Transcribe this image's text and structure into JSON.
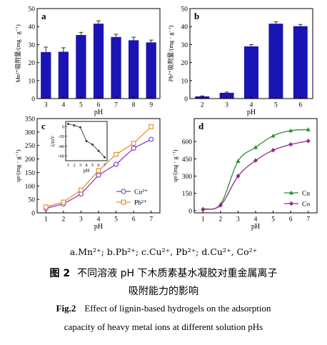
{
  "chart_data": [
    {
      "panel": "a",
      "type": "bar",
      "categories": [
        "3",
        "4",
        "5",
        "6",
        "7",
        "8",
        "9"
      ],
      "values": [
        25.8,
        26.0,
        35.3,
        41.6,
        34.2,
        32.4,
        31.2
      ],
      "errors": [
        2.8,
        2.2,
        1.5,
        1.6,
        1.5,
        1.7,
        1.3
      ],
      "xlabel": "pH",
      "ylabel": "Mn²⁺吸附量/(mg · g⁻¹)",
      "ylim": [
        0,
        50
      ],
      "yticks": [
        0,
        10,
        20,
        30,
        40,
        50
      ],
      "color": "#1a14b4"
    },
    {
      "panel": "b",
      "type": "bar",
      "categories": [
        "2",
        "3",
        "4",
        "5",
        "6"
      ],
      "values": [
        1.2,
        3.2,
        29.0,
        41.6,
        40.2
      ],
      "errors": [
        0.3,
        0.4,
        1.0,
        1.0,
        1.0
      ],
      "xlabel": "pH",
      "ylabel": "Pb²⁺吸附量/(mg · g⁻¹)",
      "ylim": [
        0,
        50
      ],
      "yticks": [
        0,
        10,
        20,
        30,
        40,
        50
      ],
      "color": "#1a14b4"
    },
    {
      "panel": "c",
      "type": "line",
      "x": [
        1,
        2,
        3,
        4,
        5,
        6,
        7
      ],
      "series": [
        {
          "name": "Cu²⁺",
          "values": [
            17,
            33,
            70,
            140,
            180,
            240,
            273
          ],
          "color": "#8a3ccd",
          "marker": "circle"
        },
        {
          "name": "Pb²⁺",
          "values": [
            22,
            40,
            85,
            157,
            217,
            258,
            320
          ],
          "color": "#e8912d",
          "marker": "square"
        }
      ],
      "xlabel": "pH",
      "ylabel": "qe/(mg · g⁻¹)",
      "xlim": [
        0.5,
        7.5
      ],
      "ylim": [
        0,
        350
      ],
      "yticks": [
        0,
        50,
        100,
        150,
        200,
        250,
        300,
        350
      ],
      "xticks": [
        1,
        2,
        3,
        4,
        5,
        6,
        7
      ],
      "legend": "center-right",
      "inset": {
        "type": "line",
        "x": [
          1,
          2,
          3,
          4,
          5,
          6,
          7
        ],
        "values": [
          5,
          2,
          -2,
          -30,
          -37,
          -50,
          -63
        ],
        "xlabel": "pH",
        "ylabel": "ζ/mV",
        "ylim": [
          -70,
          10
        ],
        "yticks": [
          0,
          -20,
          -40,
          -60
        ],
        "xticks": [
          1,
          2,
          3,
          4,
          5,
          6,
          7
        ]
      }
    },
    {
      "panel": "d",
      "type": "line",
      "x": [
        1,
        2,
        3,
        4,
        5,
        6,
        7
      ],
      "series": [
        {
          "name": "Cu",
          "values": [
            15,
            55,
            430,
            550,
            650,
            695,
            705
          ],
          "color": "#2e8b2e",
          "marker": "triangle"
        },
        {
          "name": "Co",
          "values": [
            10,
            45,
            300,
            435,
            525,
            575,
            605
          ],
          "color": "#8e2a8e",
          "marker": "diamond"
        }
      ],
      "xlabel": "pH",
      "ylabel": "qe/(mg · g⁻¹)",
      "xlim": [
        0.5,
        7.5
      ],
      "ylim": [
        -20,
        800
      ],
      "yticks": [
        0,
        150,
        300,
        450,
        600
      ],
      "xticks": [
        1,
        2,
        3,
        4,
        5,
        6,
        7
      ],
      "legend": "center-right"
    }
  ],
  "caption": {
    "subcaption": "a.Mn²⁺; b.Pb²⁺; c.Cu²⁺, Pb²⁺; d.Cu²⁺, Co²⁺",
    "cn_label": "图 2",
    "cn_line1": "不同溶液 pH 下木质素基水凝胶对重金属离子",
    "cn_line2": "吸附能力的影响",
    "en_label": "Fig.2",
    "en_line1": "Effect of lignin-based hydrogels on the adsorption",
    "en_line2": "capacity of heavy metal ions at different solution pHs"
  }
}
